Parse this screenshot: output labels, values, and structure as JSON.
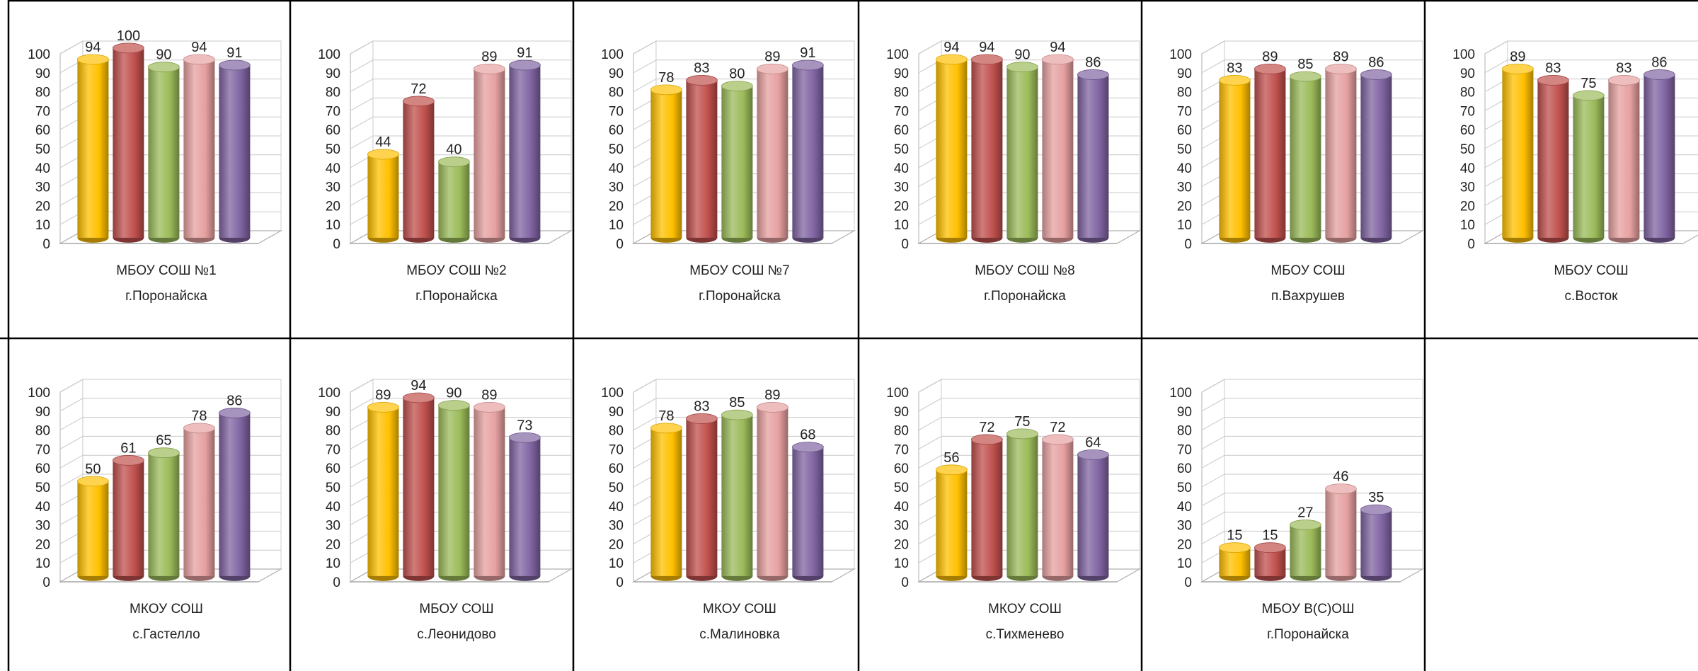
{
  "chart_data": [
    {
      "type": "bar",
      "title": "",
      "label_lines": [
        "МБОУ СОШ №1",
        "г.Поронайска"
      ],
      "values": [
        94,
        100,
        90,
        94,
        91
      ],
      "ylim": [
        0,
        100
      ],
      "yticks": [
        0,
        10,
        20,
        30,
        40,
        50,
        60,
        70,
        80,
        90,
        100
      ]
    },
    {
      "type": "bar",
      "title": "",
      "label_lines": [
        "МБОУ СОШ №2",
        "г.Поронайска"
      ],
      "values": [
        44,
        72,
        40,
        89,
        91
      ],
      "ylim": [
        0,
        100
      ],
      "yticks": [
        0,
        10,
        20,
        30,
        40,
        50,
        60,
        70,
        80,
        90,
        100
      ]
    },
    {
      "type": "bar",
      "title": "",
      "label_lines": [
        "МБОУ СОШ №7",
        "г.Поронайска"
      ],
      "values": [
        78,
        83,
        80,
        89,
        91
      ],
      "ylim": [
        0,
        100
      ],
      "yticks": [
        0,
        10,
        20,
        30,
        40,
        50,
        60,
        70,
        80,
        90,
        100
      ]
    },
    {
      "type": "bar",
      "title": "",
      "label_lines": [
        "МБОУ СОШ №8",
        "г.Поронайска"
      ],
      "values": [
        94,
        94,
        90,
        94,
        86
      ],
      "ylim": [
        0,
        100
      ],
      "yticks": [
        0,
        10,
        20,
        30,
        40,
        50,
        60,
        70,
        80,
        90,
        100
      ]
    },
    {
      "type": "bar",
      "title": "",
      "label_lines": [
        "МБОУ СОШ",
        "п.Вахрушев"
      ],
      "values": [
        83,
        89,
        85,
        89,
        86
      ],
      "ylim": [
        0,
        100
      ],
      "yticks": [
        0,
        10,
        20,
        30,
        40,
        50,
        60,
        70,
        80,
        90,
        100
      ]
    },
    {
      "type": "bar",
      "title": "",
      "label_lines": [
        "МБОУ СОШ",
        "с.Восток"
      ],
      "values": [
        89,
        83,
        75,
        83,
        86
      ],
      "ylim": [
        0,
        100
      ],
      "yticks": [
        0,
        10,
        20,
        30,
        40,
        50,
        60,
        70,
        80,
        90,
        100
      ]
    },
    {
      "type": "bar",
      "title": "",
      "label_lines": [
        "МКОУ СОШ",
        "с.Гастелло"
      ],
      "values": [
        50,
        61,
        65,
        78,
        86
      ],
      "ylim": [
        0,
        100
      ],
      "yticks": [
        0,
        10,
        20,
        30,
        40,
        50,
        60,
        70,
        80,
        90,
        100
      ]
    },
    {
      "type": "bar",
      "title": "",
      "label_lines": [
        "МБОУ СОШ",
        "с.Леонидово"
      ],
      "values": [
        89,
        94,
        90,
        89,
        73
      ],
      "ylim": [
        0,
        100
      ],
      "yticks": [
        0,
        10,
        20,
        30,
        40,
        50,
        60,
        70,
        80,
        90,
        100
      ]
    },
    {
      "type": "bar",
      "title": "",
      "label_lines": [
        "МКОУ СОШ",
        "с.Малиновка"
      ],
      "values": [
        78,
        83,
        85,
        89,
        68
      ],
      "ylim": [
        0,
        100
      ],
      "yticks": [
        0,
        10,
        20,
        30,
        40,
        50,
        60,
        70,
        80,
        90,
        100
      ]
    },
    {
      "type": "bar",
      "title": "",
      "label_lines": [
        "МКОУ СОШ",
        "с.Тихменево"
      ],
      "values": [
        56,
        72,
        75,
        72,
        64
      ],
      "ylim": [
        0,
        100
      ],
      "yticks": [
        0,
        10,
        20,
        30,
        40,
        50,
        60,
        70,
        80,
        90,
        100
      ]
    },
    {
      "type": "bar",
      "title": "",
      "label_lines": [
        "МБОУ В(С)ОШ",
        "г.Поронайска"
      ],
      "values": [
        15,
        15,
        27,
        46,
        35
      ],
      "ylim": [
        0,
        100
      ],
      "yticks": [
        0,
        10,
        20,
        30,
        40,
        50,
        60,
        70,
        80,
        90,
        100
      ]
    }
  ],
  "series_colors": [
    "#ffc000",
    "#c0504d",
    "#9bbb59",
    "#e6a0a0",
    "#8064a2"
  ],
  "grid": true,
  "style": "3d-cylinder"
}
